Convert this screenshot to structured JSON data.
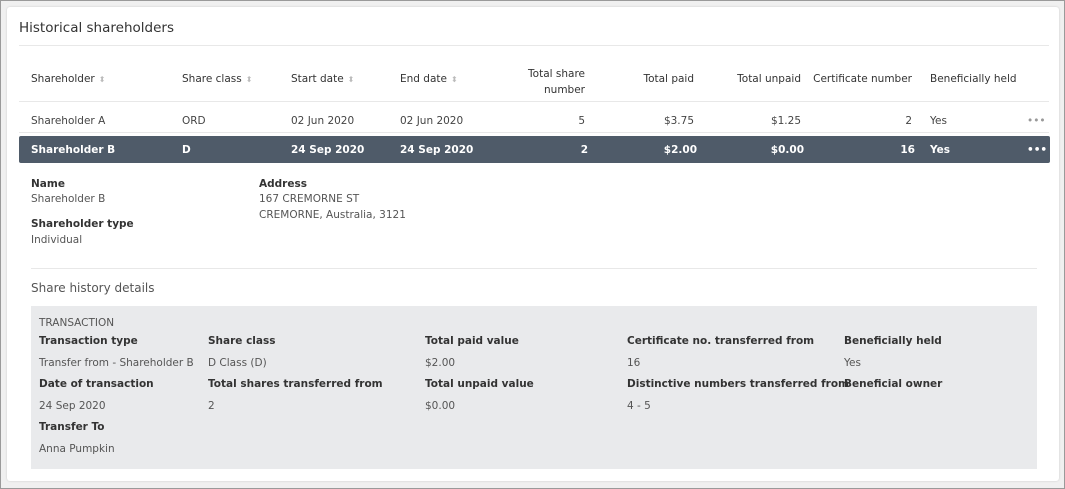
{
  "title": "Historical shareholders",
  "table": {
    "headers": [
      "Shareholder",
      "Share class",
      "Start date",
      "End date",
      "Total share",
      "number",
      "Total paid",
      "Total unpaid",
      "Certificate number",
      "Beneficially held"
    ],
    "rows": [
      {
        "shareholder": "Shareholder A",
        "share_class": "ORD",
        "start_date": "02 Jun 2020",
        "end_date": "02 Jun 2020",
        "total_share_number": "5",
        "total_paid": "$3.75",
        "total_unpaid": "$1.25",
        "certificate_number": "2",
        "beneficially_held": "Yes",
        "menu": "•••"
      },
      {
        "shareholder": "Shareholder B",
        "share_class": "D",
        "start_date": "24 Sep 2020",
        "end_date": "24 Sep 2020",
        "total_share_number": "2",
        "total_paid": "$2.00",
        "total_unpaid": "$0.00",
        "certificate_number": "16",
        "beneficially_held": "Yes",
        "menu": "•••"
      }
    ]
  },
  "details": {
    "name_label": "Name",
    "name": "Shareholder B",
    "type_label": "Shareholder type",
    "type": "Individual",
    "address_label": "Address",
    "address_line1": "167 CREMORNE ST",
    "address_line2": "CREMORNE, Australia, 3121"
  },
  "history": {
    "title": "Share history details",
    "section": "TRANSACTION",
    "fields": [
      {
        "label": "Transaction type",
        "value": "Transfer from - Shareholder B"
      },
      {
        "label": "Share class",
        "value": "D Class (D)"
      },
      {
        "label": "Total paid value",
        "value": "$2.00"
      },
      {
        "label": "Certificate no. transferred from",
        "value": "16"
      },
      {
        "label": "Beneficially held",
        "value": "Yes"
      },
      {
        "label": "Date of transaction",
        "value": "24 Sep 2020"
      },
      {
        "label": "Total shares transferred from",
        "value": "2"
      },
      {
        "label": "Total unpaid value",
        "value": "$0.00"
      },
      {
        "label": "Distinctive numbers transferred from",
        "value": "4 - 5"
      },
      {
        "label": "Beneficial owner",
        "value": ""
      },
      {
        "label": "Transfer To",
        "value": "Anna Pumpkin"
      }
    ]
  },
  "colors": {
    "selected_row": "#4f5b69",
    "detail_box": "#e9eaec"
  }
}
